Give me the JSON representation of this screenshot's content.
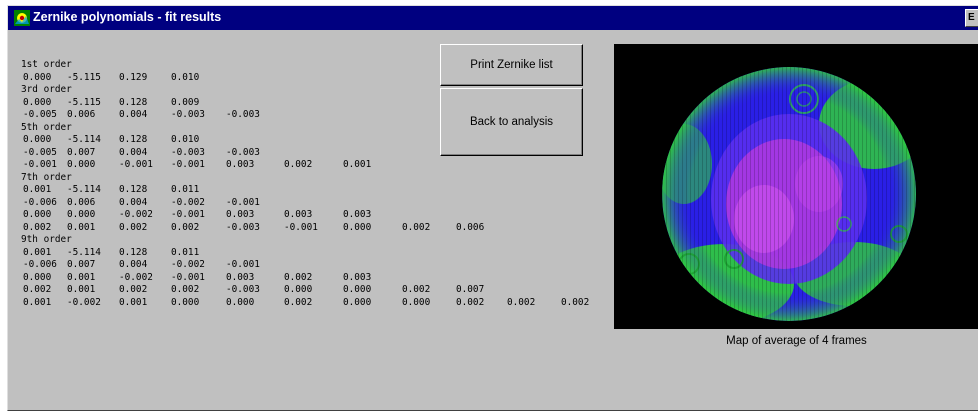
{
  "window": {
    "title": "Zernike polynomials - fit results",
    "close_label": "E"
  },
  "results": [
    {
      "kind": "header",
      "text": "1st order"
    },
    {
      "kind": "row",
      "values": [
        "0.000",
        "-5.115",
        "0.129",
        "0.010"
      ]
    },
    {
      "kind": "header",
      "text": "3rd order"
    },
    {
      "kind": "row",
      "values": [
        "0.000",
        "-5.115",
        "0.128",
        "0.009"
      ]
    },
    {
      "kind": "row",
      "values": [
        "-0.005",
        "0.006",
        "0.004",
        "-0.003",
        "-0.003"
      ]
    },
    {
      "kind": "header",
      "text": "5th order"
    },
    {
      "kind": "row",
      "values": [
        "0.000",
        "-5.114",
        "0.128",
        "0.010"
      ]
    },
    {
      "kind": "row",
      "values": [
        "-0.005",
        "0.007",
        "0.004",
        "-0.003",
        "-0.003"
      ]
    },
    {
      "kind": "row",
      "values": [
        "-0.001",
        "0.000",
        "-0.001",
        "-0.001",
        "0.003",
        "0.002",
        "0.001"
      ]
    },
    {
      "kind": "header",
      "text": "7th order"
    },
    {
      "kind": "row",
      "values": [
        "0.001",
        "-5.114",
        "0.128",
        "0.011"
      ]
    },
    {
      "kind": "row",
      "values": [
        "-0.006",
        "0.006",
        "0.004",
        "-0.002",
        "-0.001"
      ]
    },
    {
      "kind": "row",
      "values": [
        "0.000",
        "0.000",
        "-0.002",
        "-0.001",
        "0.003",
        "0.003",
        "0.003"
      ]
    },
    {
      "kind": "row",
      "values": [
        "0.002",
        "0.001",
        "0.002",
        "0.002",
        "-0.003",
        "-0.001",
        "0.000",
        "0.002",
        "0.006"
      ]
    },
    {
      "kind": "header",
      "text": "9th order"
    },
    {
      "kind": "row",
      "values": [
        "0.001",
        "-5.114",
        "0.128",
        "0.011"
      ]
    },
    {
      "kind": "row",
      "values": [
        "-0.006",
        "0.007",
        "0.004",
        "-0.002",
        "-0.001"
      ]
    },
    {
      "kind": "row",
      "values": [
        "0.000",
        "0.001",
        "-0.002",
        "-0.001",
        "0.003",
        "0.002",
        "0.003"
      ]
    },
    {
      "kind": "row",
      "values": [
        "0.002",
        "0.001",
        "0.002",
        "0.002",
        "-0.003",
        "0.000",
        "0.000",
        "0.002",
        "0.007"
      ]
    },
    {
      "kind": "row",
      "values": [
        "0.001",
        "-0.002",
        "0.001",
        "0.000",
        "0.000",
        "0.002",
        "0.000",
        "0.000",
        "0.002",
        "0.002",
        "0.002"
      ]
    }
  ],
  "buttons": {
    "print": "Print Zernike list",
    "back": "Back to analysis"
  },
  "map": {
    "caption": "Map of average of 4 frames"
  },
  "colors": {
    "titlebar": "#000080",
    "face": "#c0c0c0",
    "map_background": "#000000",
    "map_blue": "#2a1fe6",
    "map_green": "#2fcf3a",
    "map_magenta": "#b23ae0"
  },
  "icons": {
    "app": "app-icon",
    "close": "close-icon"
  }
}
